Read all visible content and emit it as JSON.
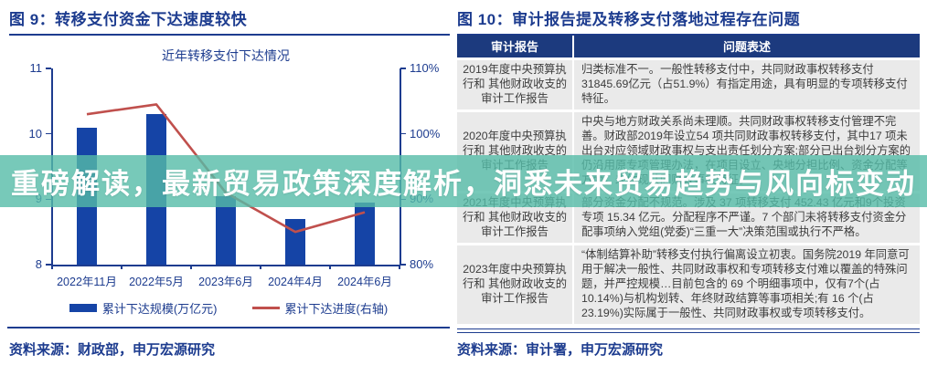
{
  "colors": {
    "navy": "#1d3c8f",
    "bar_blue": "#1544a6",
    "line_red": "#c0504d",
    "table_header_bg": "#1c3a7e",
    "table_row_bg": "#eaeaea",
    "banner_teal": "#55bca7"
  },
  "banner": {
    "text": "重磅解读，最新贸易政策深度解析，洞悉未来贸易趋势与风向标变动",
    "opacity": 0.8
  },
  "figure9": {
    "title": "图 9：转移支付资金下达速度较快",
    "source": "资料来源：财政部，申万宏源研究",
    "chart_data": {
      "type": "bar",
      "subtype": "bar+line combo, dual axis",
      "title": "近年转移支付下达情况",
      "categories": [
        "2022年11月",
        "2022年5月",
        "2023年6月",
        "2024年4月",
        "2024年6月"
      ],
      "series": [
        {
          "name": "累计下达规模(万亿元)",
          "type": "bar",
          "axis": "left",
          "color": "#1544a6",
          "values": [
            10.1,
            10.3,
            9.05,
            8.7,
            8.95
          ]
        },
        {
          "name": "累计下达进度(右轴)",
          "type": "line",
          "axis": "right",
          "color": "#c0504d",
          "values": [
            103,
            104.5,
            91,
            85,
            88
          ]
        }
      ],
      "left_axis": {
        "min": 8,
        "max": 11,
        "ticks": [
          11,
          10,
          9,
          8
        ],
        "suffix": ""
      },
      "right_axis": {
        "min": 80,
        "max": 110,
        "ticks": [
          110,
          100,
          90,
          80
        ],
        "suffix": "%"
      },
      "grid": false,
      "legend_position": "bottom"
    }
  },
  "figure10": {
    "title": "图 10：审计报告提及转移支付落地过程存在问题",
    "source": "资料来源：审计署，申万宏源研究",
    "table": {
      "headers": [
        "审计报告",
        "问题表述"
      ],
      "rows": [
        {
          "report": "2019年度中央预算执行和 其他财政收支的审计工作报告",
          "issue": "归类标准不一。一般性转移支付中，共同财政事权转移支付31845.69亿元（占51.9%）有指定用途，具有明显的专项转移支付特征。"
        },
        {
          "report": "2020年度中央预算执行和 其他财政收支的审计工作报告",
          "issue": "中央与地方财政关系尚未理顺。共同财政事权转移支付管理不完善。财政部2019年设立54 项共同财政事权转移支付，其中17 项未出台对应领域财政事权与支出责任划分方案;部分已出台划分方案的仍沿用原专项管理办法，在项目设立、央地分担比例、资金分配等方面，未体现共同财政事权特征。"
        },
        {
          "report": "2021年度中央预算执行和 其他财政收支的审计工作报告",
          "issue": "部分资金分配不规范。涉及 37 项转移支付 452.43 亿元和9个投资专项 15.34 亿元。分配程序不严谨。7 个部门未将转移支付资金分配事项纳入党组(党委)“三重一大”决策范围或执行不严格。"
        },
        {
          "report": "2023年度中央预算执行和 其他财政收支的审计工作报告",
          "issue": "“体制结算补助”转移支付执行偏离设立初衷。国务院2019 年同意可用于解决一般性、共同财政事权和专项转移支付难以覆盖的特殊问题，并严控规模…目前包含的 69 个明细事项中，仅有7个(占10.14%)与机构划转、年终财政结算等事项相关;有 16 个(占23.19%)实际属于一般性、共同财政事权或专项转移支付。"
        }
      ]
    }
  }
}
